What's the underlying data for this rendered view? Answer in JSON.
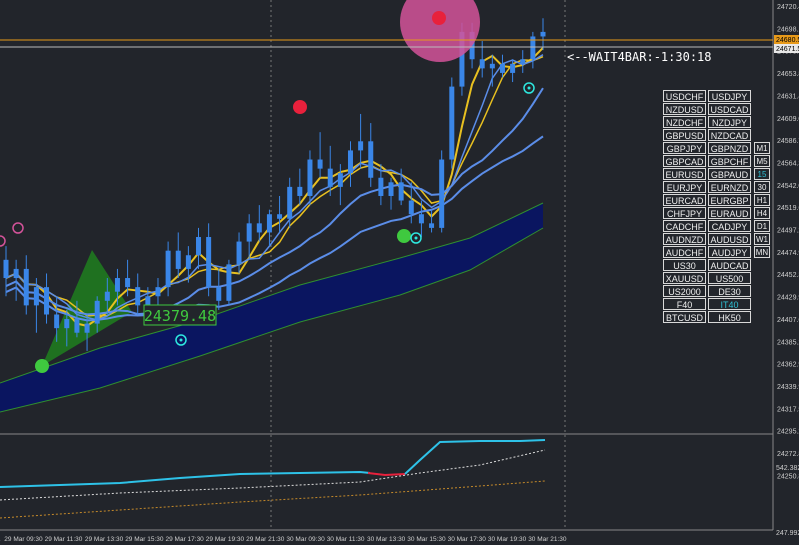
{
  "chart_data": {
    "type": "candlestick",
    "symbol_price_label": "24379.48",
    "timer_label": "<--WAIT4BAR:-1:30:18",
    "price_axis": {
      "ticks": [
        "24720.4",
        "24698.1",
        "24675.7",
        "24653.8",
        "24631.4",
        "24609.0",
        "24586.7",
        "24564.3",
        "24542.0",
        "24519.6",
        "24497.2",
        "24474.9",
        "24452.3",
        "24429.9",
        "24407.6",
        "24385.2",
        "24362.9",
        "24339.9",
        "24317.5",
        "24295.2",
        "24272.8",
        "24250.8"
      ],
      "current_bid": "24680.5",
      "current_ask": "24671.5",
      "range": [
        24250,
        24725
      ]
    },
    "indicator_axis": {
      "ticks": [
        "542.3824",
        "247.992"
      ]
    },
    "time_axis": {
      "labels": [
        "29 Mar 2021",
        "29 Mar 09:30",
        "29 Mar 11:30",
        "29 Mar 13:30",
        "29 Mar 15:30",
        "29 Mar 17:30",
        "29 Mar 19:30",
        "29 Mar 21:30",
        "30 Mar 09:30",
        "30 Mar 11:30",
        "30 Mar 13:30",
        "30 Mar 15:30",
        "30 Mar 17:30",
        "30 Mar 19:30",
        "30 Mar 21:30"
      ]
    },
    "candles": [
      [
        24440,
        24455,
        24400,
        24420
      ],
      [
        24420,
        24440,
        24395,
        24430
      ],
      [
        24430,
        24445,
        24380,
        24390
      ],
      [
        24390,
        24420,
        24360,
        24410
      ],
      [
        24410,
        24425,
        24370,
        24380
      ],
      [
        24380,
        24400,
        24350,
        24365
      ],
      [
        24365,
        24385,
        24345,
        24375
      ],
      [
        24375,
        24395,
        24355,
        24360
      ],
      [
        24360,
        24380,
        24340,
        24370
      ],
      [
        24370,
        24400,
        24360,
        24395
      ],
      [
        24395,
        24420,
        24380,
        24405
      ],
      [
        24405,
        24430,
        24390,
        24420
      ],
      [
        24420,
        24440,
        24400,
        24410
      ],
      [
        24410,
        24425,
        24380,
        24390
      ],
      [
        24390,
        24410,
        24370,
        24400
      ],
      [
        24400,
        24420,
        24385,
        24410
      ],
      [
        24410,
        24460,
        24400,
        24450
      ],
      [
        24450,
        24470,
        24420,
        24430
      ],
      [
        24430,
        24455,
        24415,
        24445
      ],
      [
        24445,
        24475,
        24430,
        24465
      ],
      [
        24465,
        24480,
        24400,
        24410
      ],
      [
        24410,
        24430,
        24385,
        24395
      ],
      [
        24395,
        24440,
        24390,
        24435
      ],
      [
        24435,
        24470,
        24425,
        24460
      ],
      [
        24460,
        24490,
        24440,
        24480
      ],
      [
        24480,
        24500,
        24460,
        24470
      ],
      [
        24470,
        24495,
        24455,
        24490
      ],
      [
        24490,
        24510,
        24470,
        24485
      ],
      [
        24485,
        24530,
        24475,
        24520
      ],
      [
        24520,
        24540,
        24500,
        24510
      ],
      [
        24510,
        24560,
        24500,
        24550
      ],
      [
        24550,
        24580,
        24530,
        24540
      ],
      [
        24540,
        24565,
        24510,
        24520
      ],
      [
        24520,
        24545,
        24500,
        24535
      ],
      [
        24535,
        24570,
        24520,
        24560
      ],
      [
        24560,
        24600,
        24540,
        24570
      ],
      [
        24570,
        24590,
        24520,
        24530
      ],
      [
        24530,
        24545,
        24500,
        24510
      ],
      [
        24510,
        24530,
        24495,
        24525
      ],
      [
        24525,
        24540,
        24500,
        24505
      ],
      [
        24505,
        24525,
        24480,
        24490
      ],
      [
        24490,
        24505,
        24465,
        24480
      ],
      [
        24480,
        24495,
        24470,
        24475
      ],
      [
        24475,
        24560,
        24470,
        24550
      ],
      [
        24550,
        24640,
        24540,
        24630
      ],
      [
        24630,
        24700,
        24620,
        24690
      ],
      [
        24690,
        24700,
        24650,
        24660
      ],
      [
        24660,
        24680,
        24640,
        24650
      ],
      [
        24650,
        24665,
        24630,
        24655
      ],
      [
        24655,
        24665,
        24640,
        24645
      ],
      [
        24645,
        24660,
        24635,
        24655
      ],
      [
        24655,
        24670,
        24645,
        24660
      ],
      [
        24660,
        24690,
        24650,
        24685
      ],
      [
        24685,
        24705,
        24670,
        24690
      ]
    ],
    "symbols": [
      [
        "USDCHF",
        "USDJPY",
        ""
      ],
      [
        "NZDUSD",
        "USDCAD",
        ""
      ],
      [
        "NZDCHF",
        "NZDJPY",
        ""
      ],
      [
        "GBPUSD",
        "NZDCAD",
        ""
      ],
      [
        "GBPJPY",
        "GBPNZD",
        "M1"
      ],
      [
        "GBPCAD",
        "GBPCHF",
        "M5"
      ],
      [
        "EURUSD",
        "GBPAUD",
        "15"
      ],
      [
        "EURJPY",
        "EURNZD",
        "30"
      ],
      [
        "EURCAD",
        "EURGBP",
        "H1"
      ],
      [
        "CHFJPY",
        "EURAUD",
        "H4"
      ],
      [
        "CADCHF",
        "CADJPY",
        "D1"
      ],
      [
        "AUDNZD",
        "AUDUSD",
        "W1"
      ],
      [
        "AUDCHF",
        "AUDJPY",
        "MN"
      ],
      [
        "US30",
        "AUDCAD",
        ""
      ],
      [
        "XAUUSD",
        "US500",
        ""
      ],
      [
        "US2000",
        "DE30",
        ""
      ],
      [
        "F40",
        "IT40",
        ""
      ],
      [
        "BTCUSD",
        "HK50",
        ""
      ]
    ],
    "highlight_symbols": [
      "IT40"
    ],
    "highlight_tf": [
      "15"
    ],
    "colors": {
      "background": "#22252b",
      "bull": "#3a86e8",
      "bear": "#3a86e8",
      "ma_yellow": "#e8c020",
      "ma_blue": "#5b8de8",
      "band_fill": "#0a1560",
      "band_edge": "#2f8f2f",
      "green_zone": "#1f7a1f",
      "signal_red": "#e8213c",
      "signal_green": "#3fc93f",
      "circle_pink": "#d4539a",
      "indicator_cyan": "#2ec2e8",
      "indicator_red": "#e8213c",
      "price_line": "#e89a1a"
    }
  }
}
